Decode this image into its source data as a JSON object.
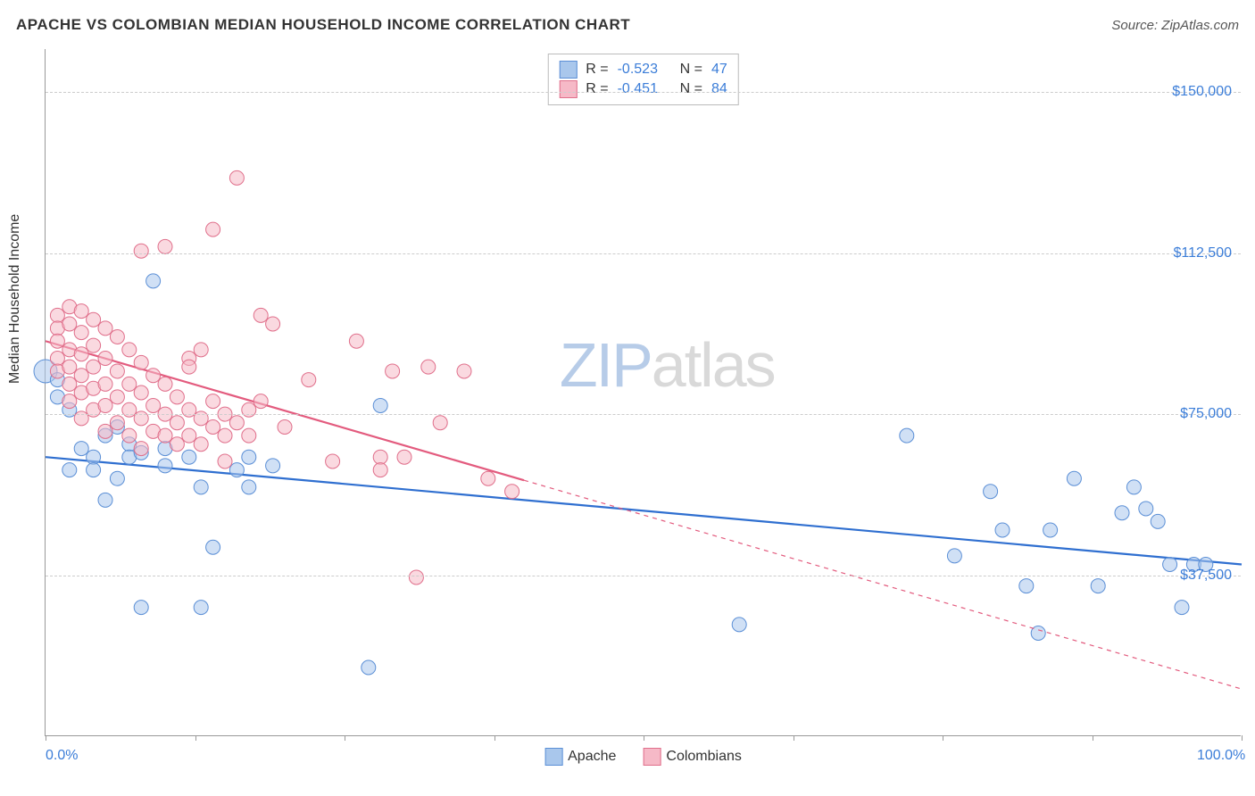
{
  "header": {
    "title": "APACHE VS COLOMBIAN MEDIAN HOUSEHOLD INCOME CORRELATION CHART",
    "source_prefix": "Source: ",
    "source_name": "ZipAtlas.com"
  },
  "chart": {
    "type": "scatter",
    "ylabel": "Median Household Income",
    "xlim": [
      0,
      100
    ],
    "ylim": [
      0,
      160000
    ],
    "background_color": "#ffffff",
    "grid_color": "#cccccc",
    "axis_color": "#999999",
    "text_color": "#333333",
    "value_color": "#3b7dd8",
    "watermark": {
      "zip": "ZIP",
      "atlas": "atlas",
      "zip_color": "#b7cce8",
      "atlas_color": "#d9d9d9"
    },
    "yticks": [
      {
        "value": 37500,
        "label": "$37,500"
      },
      {
        "value": 75000,
        "label": "$75,000"
      },
      {
        "value": 112500,
        "label": "$112,500"
      },
      {
        "value": 150000,
        "label": "$150,000"
      }
    ],
    "xticks_minor": [
      0,
      12.5,
      25,
      37.5,
      50,
      62.5,
      75,
      87.5,
      100
    ],
    "xticks_labeled": [
      {
        "value": 0,
        "label": "0.0%"
      },
      {
        "value": 100,
        "label": "100.0%"
      }
    ],
    "stats": [
      {
        "r_label": "R = ",
        "r": "-0.523",
        "n_label": "N = ",
        "n": "47",
        "swatch_fill": "#a9c7ec",
        "swatch_stroke": "#5b8fd6"
      },
      {
        "r_label": "R = ",
        "r": "-0.451",
        "n_label": "N = ",
        "n": "84",
        "swatch_fill": "#f6b9c7",
        "swatch_stroke": "#e06f8b"
      }
    ],
    "legend": [
      {
        "label": "Apache",
        "swatch_fill": "#a9c7ec",
        "swatch_stroke": "#5b8fd6"
      },
      {
        "label": "Colombians",
        "swatch_fill": "#f6b9c7",
        "swatch_stroke": "#e06f8b"
      }
    ],
    "series": [
      {
        "name": "Apache",
        "fill": "#a9c7ec",
        "stroke": "#5b8fd6",
        "fill_opacity": 0.55,
        "r": 8,
        "trend": {
          "x1": 0,
          "y1": 65000,
          "x2": 100,
          "y2": 40000,
          "solid_until_x": 100,
          "color": "#2f6fd0",
          "width": 2.2
        },
        "points": [
          {
            "x": 0,
            "y": 85000,
            "r": 13
          },
          {
            "x": 1,
            "y": 83000
          },
          {
            "x": 1,
            "y": 79000
          },
          {
            "x": 2,
            "y": 76000
          },
          {
            "x": 2,
            "y": 62000
          },
          {
            "x": 3,
            "y": 67000
          },
          {
            "x": 4,
            "y": 65000
          },
          {
            "x": 4,
            "y": 62000
          },
          {
            "x": 5,
            "y": 55000
          },
          {
            "x": 5,
            "y": 70000
          },
          {
            "x": 6,
            "y": 60000
          },
          {
            "x": 6,
            "y": 72000
          },
          {
            "x": 7,
            "y": 68000
          },
          {
            "x": 7,
            "y": 65000
          },
          {
            "x": 8,
            "y": 66000
          },
          {
            "x": 8,
            "y": 30000
          },
          {
            "x": 9,
            "y": 106000
          },
          {
            "x": 10,
            "y": 67000
          },
          {
            "x": 10,
            "y": 63000
          },
          {
            "x": 12,
            "y": 65000
          },
          {
            "x": 13,
            "y": 58000
          },
          {
            "x": 13,
            "y": 30000
          },
          {
            "x": 14,
            "y": 44000
          },
          {
            "x": 16,
            "y": 62000
          },
          {
            "x": 17,
            "y": 58000
          },
          {
            "x": 17,
            "y": 65000
          },
          {
            "x": 19,
            "y": 63000
          },
          {
            "x": 27,
            "y": 16000
          },
          {
            "x": 28,
            "y": 77000
          },
          {
            "x": 58,
            "y": 26000
          },
          {
            "x": 72,
            "y": 70000
          },
          {
            "x": 76,
            "y": 42000
          },
          {
            "x": 79,
            "y": 57000
          },
          {
            "x": 80,
            "y": 48000
          },
          {
            "x": 82,
            "y": 35000
          },
          {
            "x": 83,
            "y": 24000
          },
          {
            "x": 84,
            "y": 48000
          },
          {
            "x": 86,
            "y": 60000
          },
          {
            "x": 88,
            "y": 35000
          },
          {
            "x": 90,
            "y": 52000
          },
          {
            "x": 91,
            "y": 58000
          },
          {
            "x": 92,
            "y": 53000
          },
          {
            "x": 93,
            "y": 50000
          },
          {
            "x": 94,
            "y": 40000
          },
          {
            "x": 95,
            "y": 30000
          },
          {
            "x": 96,
            "y": 40000
          },
          {
            "x": 97,
            "y": 40000
          }
        ]
      },
      {
        "name": "Colombians",
        "fill": "#f6b9c7",
        "stroke": "#e06f8b",
        "fill_opacity": 0.55,
        "r": 8,
        "trend": {
          "x1": 0,
          "y1": 92000,
          "x2": 100,
          "y2": 11000,
          "solid_until_x": 40,
          "color": "#e35b7e",
          "width": 2.2
        },
        "points": [
          {
            "x": 1,
            "y": 98000
          },
          {
            "x": 1,
            "y": 95000
          },
          {
            "x": 1,
            "y": 92000
          },
          {
            "x": 1,
            "y": 88000
          },
          {
            "x": 1,
            "y": 85000
          },
          {
            "x": 2,
            "y": 100000
          },
          {
            "x": 2,
            "y": 96000
          },
          {
            "x": 2,
            "y": 90000
          },
          {
            "x": 2,
            "y": 86000
          },
          {
            "x": 2,
            "y": 82000
          },
          {
            "x": 2,
            "y": 78000
          },
          {
            "x": 3,
            "y": 99000
          },
          {
            "x": 3,
            "y": 94000
          },
          {
            "x": 3,
            "y": 89000
          },
          {
            "x": 3,
            "y": 84000
          },
          {
            "x": 3,
            "y": 80000
          },
          {
            "x": 3,
            "y": 74000
          },
          {
            "x": 4,
            "y": 97000
          },
          {
            "x": 4,
            "y": 91000
          },
          {
            "x": 4,
            "y": 86000
          },
          {
            "x": 4,
            "y": 81000
          },
          {
            "x": 4,
            "y": 76000
          },
          {
            "x": 5,
            "y": 95000
          },
          {
            "x": 5,
            "y": 88000
          },
          {
            "x": 5,
            "y": 82000
          },
          {
            "x": 5,
            "y": 77000
          },
          {
            "x": 5,
            "y": 71000
          },
          {
            "x": 6,
            "y": 93000
          },
          {
            "x": 6,
            "y": 85000
          },
          {
            "x": 6,
            "y": 79000
          },
          {
            "x": 6,
            "y": 73000
          },
          {
            "x": 7,
            "y": 90000
          },
          {
            "x": 7,
            "y": 82000
          },
          {
            "x": 7,
            "y": 76000
          },
          {
            "x": 7,
            "y": 70000
          },
          {
            "x": 8,
            "y": 87000
          },
          {
            "x": 8,
            "y": 80000
          },
          {
            "x": 8,
            "y": 74000
          },
          {
            "x": 8,
            "y": 113000
          },
          {
            "x": 8,
            "y": 67000
          },
          {
            "x": 9,
            "y": 84000
          },
          {
            "x": 9,
            "y": 77000
          },
          {
            "x": 9,
            "y": 71000
          },
          {
            "x": 10,
            "y": 114000
          },
          {
            "x": 10,
            "y": 82000
          },
          {
            "x": 10,
            "y": 75000
          },
          {
            "x": 10,
            "y": 70000
          },
          {
            "x": 11,
            "y": 79000
          },
          {
            "x": 11,
            "y": 73000
          },
          {
            "x": 11,
            "y": 68000
          },
          {
            "x": 12,
            "y": 88000
          },
          {
            "x": 12,
            "y": 76000
          },
          {
            "x": 12,
            "y": 70000
          },
          {
            "x": 12,
            "y": 86000
          },
          {
            "x": 13,
            "y": 90000
          },
          {
            "x": 13,
            "y": 74000
          },
          {
            "x": 13,
            "y": 68000
          },
          {
            "x": 14,
            "y": 118000
          },
          {
            "x": 14,
            "y": 78000
          },
          {
            "x": 14,
            "y": 72000
          },
          {
            "x": 15,
            "y": 75000
          },
          {
            "x": 15,
            "y": 70000
          },
          {
            "x": 15,
            "y": 64000
          },
          {
            "x": 16,
            "y": 130000
          },
          {
            "x": 16,
            "y": 73000
          },
          {
            "x": 17,
            "y": 76000
          },
          {
            "x": 17,
            "y": 70000
          },
          {
            "x": 18,
            "y": 98000
          },
          {
            "x": 18,
            "y": 78000
          },
          {
            "x": 19,
            "y": 96000
          },
          {
            "x": 20,
            "y": 72000
          },
          {
            "x": 22,
            "y": 83000
          },
          {
            "x": 24,
            "y": 64000
          },
          {
            "x": 26,
            "y": 92000
          },
          {
            "x": 28,
            "y": 65000
          },
          {
            "x": 28,
            "y": 62000
          },
          {
            "x": 29,
            "y": 85000
          },
          {
            "x": 30,
            "y": 65000
          },
          {
            "x": 31,
            "y": 37000
          },
          {
            "x": 32,
            "y": 86000
          },
          {
            "x": 33,
            "y": 73000
          },
          {
            "x": 35,
            "y": 85000
          },
          {
            "x": 37,
            "y": 60000
          },
          {
            "x": 39,
            "y": 57000
          }
        ]
      }
    ]
  }
}
